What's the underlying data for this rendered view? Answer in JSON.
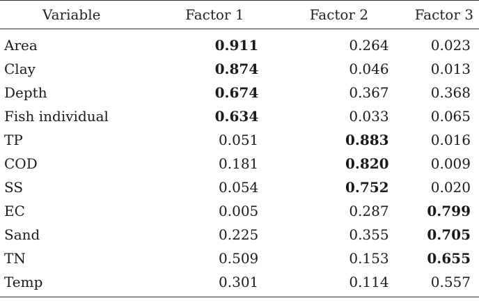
{
  "table": {
    "headers": [
      "Variable",
      "Factor 1",
      "Factor 2",
      "Factor 3"
    ],
    "rows": [
      {
        "variable": "Area",
        "values": [
          "0.911",
          "0.264",
          "0.023"
        ],
        "bold": [
          true,
          false,
          false
        ]
      },
      {
        "variable": "Clay",
        "values": [
          "0.874",
          "0.046",
          "0.013"
        ],
        "bold": [
          true,
          false,
          false
        ]
      },
      {
        "variable": "Depth",
        "values": [
          "0.674",
          "0.367",
          "0.368"
        ],
        "bold": [
          true,
          false,
          false
        ]
      },
      {
        "variable": "Fish individual",
        "values": [
          "0.634",
          "0.033",
          "0.065"
        ],
        "bold": [
          true,
          false,
          false
        ]
      },
      {
        "variable": "TP",
        "values": [
          "0.051",
          "0.883",
          "0.016"
        ],
        "bold": [
          false,
          true,
          false
        ]
      },
      {
        "variable": "COD",
        "values": [
          "0.181",
          "0.820",
          "0.009"
        ],
        "bold": [
          false,
          true,
          false
        ]
      },
      {
        "variable": "SS",
        "values": [
          "0.054",
          "0.752",
          "0.020"
        ],
        "bold": [
          false,
          true,
          false
        ]
      },
      {
        "variable": "EC",
        "values": [
          "0.005",
          "0.287",
          "0.799"
        ],
        "bold": [
          false,
          false,
          true
        ]
      },
      {
        "variable": "Sand",
        "values": [
          "0.225",
          "0.355",
          "0.705"
        ],
        "bold": [
          false,
          false,
          true
        ]
      },
      {
        "variable": "TN",
        "values": [
          "0.509",
          "0.153",
          "0.655"
        ],
        "bold": [
          false,
          false,
          true
        ]
      },
      {
        "variable": "Temp",
        "values": [
          "0.301",
          "0.114",
          "0.557"
        ],
        "bold": [
          false,
          false,
          false
        ]
      }
    ]
  }
}
